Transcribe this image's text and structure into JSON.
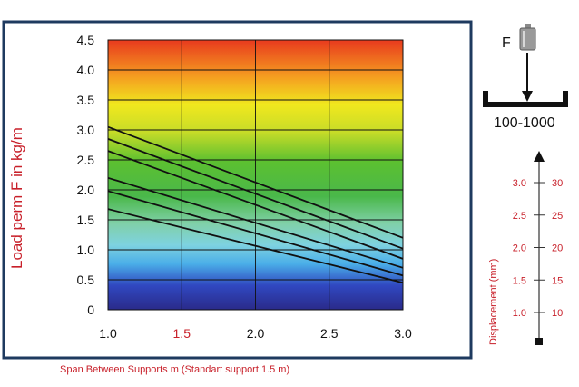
{
  "chart_data": {
    "type": "line",
    "title": "",
    "xlabel": "Span Between Supports m (Standart support 1.5 m)",
    "ylabel": "Load perm F in kg/m",
    "xlim": [
      1.0,
      3.0
    ],
    "ylim": [
      0,
      4.5
    ],
    "x_ticks": [
      {
        "value": 1.0,
        "label": "1.0",
        "highlight": false
      },
      {
        "value": 1.5,
        "label": "1.5",
        "highlight": true
      },
      {
        "value": 2.0,
        "label": "2.0",
        "highlight": false
      },
      {
        "value": 2.5,
        "label": "2.5",
        "highlight": false
      },
      {
        "value": 3.0,
        "label": "3.0",
        "highlight": false
      }
    ],
    "y_ticks": [
      {
        "value": 0.0,
        "label": "0"
      },
      {
        "value": 0.5,
        "label": "0.5"
      },
      {
        "value": 1.0,
        "label": "1.0"
      },
      {
        "value": 1.5,
        "label": "1.5"
      },
      {
        "value": 2.0,
        "label": "2.0"
      },
      {
        "value": 2.5,
        "label": "2.5"
      },
      {
        "value": 3.0,
        "label": "3.0"
      },
      {
        "value": 3.5,
        "label": "3.5"
      },
      {
        "value": 4.0,
        "label": "4.0"
      },
      {
        "value": 4.5,
        "label": "4.5"
      }
    ],
    "grid": true,
    "background": "vertical color gradient from blue at 0 to red at 4.5",
    "gradient_stops": [
      {
        "at": 0.0,
        "color": "#2a2a8a"
      },
      {
        "at": 0.09,
        "color": "#3048c0"
      },
      {
        "at": 0.17,
        "color": "#4aaee8"
      },
      {
        "at": 0.24,
        "color": "#7ed2e0"
      },
      {
        "at": 0.32,
        "color": "#80d0a8"
      },
      {
        "at": 0.42,
        "color": "#4ab84a"
      },
      {
        "at": 0.55,
        "color": "#5cc030"
      },
      {
        "at": 0.66,
        "color": "#c8dc28"
      },
      {
        "at": 0.76,
        "color": "#f0e81e"
      },
      {
        "at": 0.86,
        "color": "#f5a020"
      },
      {
        "at": 1.0,
        "color": "#e83a1e"
      }
    ],
    "series": [
      {
        "x": [
          1.0,
          3.0
        ],
        "values": [
          3.05,
          1.2
        ]
      },
      {
        "x": [
          1.0,
          3.0
        ],
        "values": [
          2.85,
          1.02
        ]
      },
      {
        "x": [
          1.0,
          3.0
        ],
        "values": [
          2.65,
          0.85
        ]
      },
      {
        "x": [
          1.0,
          3.0
        ],
        "values": [
          2.2,
          0.7
        ]
      },
      {
        "x": [
          1.0,
          3.0
        ],
        "values": [
          1.98,
          0.57
        ]
      },
      {
        "x": [
          1.0,
          3.0
        ],
        "values": [
          1.68,
          0.45
        ]
      }
    ],
    "line_color": "#111111"
  },
  "side_panel": {
    "force_symbol": "F",
    "weight_icon": "weight-icon",
    "down_arrow_icon": "down-arrow-icon",
    "range_label": "100-1000"
  },
  "displacement_scale": {
    "label": "Displacement (mm)",
    "ticks": [
      {
        "left": "3.0",
        "right": "30",
        "value": 30
      },
      {
        "left": "2.5",
        "right": "25",
        "value": 25
      },
      {
        "left": "2.0",
        "right": "20",
        "value": 20
      },
      {
        "left": "1.5",
        "right": "15",
        "value": 15
      },
      {
        "left": "1.0",
        "right": "10",
        "value": 10
      }
    ]
  },
  "colors": {
    "frame": "#1e3a5f",
    "accent_red": "#c8202a"
  }
}
